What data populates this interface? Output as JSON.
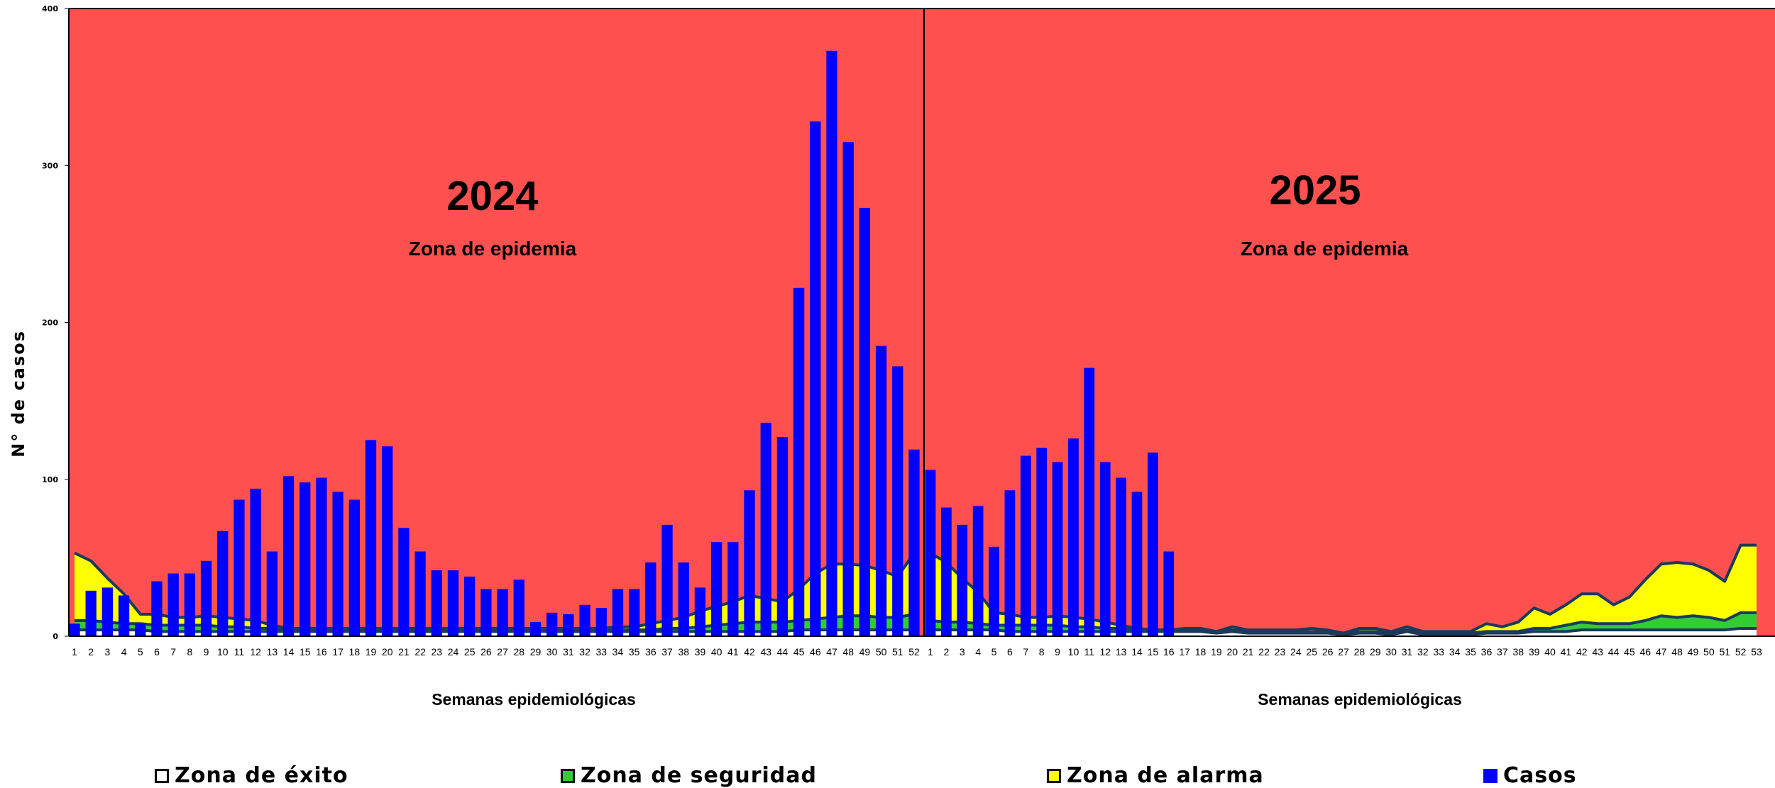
{
  "chart_data": {
    "type": "bar",
    "ylabel": "N° de casos",
    "ylim": [
      0,
      400
    ],
    "yticks": [
      "0",
      "100",
      "200",
      "300",
      "400"
    ],
    "colors": {
      "epidemia": "#ff5050",
      "alarma": "#ffff00",
      "seguridad": "#33cc33",
      "exito": "#ffffff",
      "casos": "#0000ff",
      "lines": "#1a3a5c"
    },
    "panels": [
      {
        "year": "2024",
        "zone_label": "Zona de epidemia",
        "xlabel": "Semanas epidemiológicas",
        "weeks": [
          "1",
          "2",
          "3",
          "4",
          "5",
          "6",
          "7",
          "8",
          "9",
          "10",
          "11",
          "12",
          "13",
          "14",
          "15",
          "16",
          "17",
          "18",
          "19",
          "20",
          "21",
          "22",
          "23",
          "24",
          "25",
          "26",
          "27",
          "28",
          "29",
          "30",
          "31",
          "32",
          "33",
          "34",
          "35",
          "36",
          "37",
          "38",
          "39",
          "40",
          "41",
          "42",
          "43",
          "44",
          "45",
          "46",
          "47",
          "48",
          "49",
          "50",
          "51",
          "52"
        ],
        "casos": [
          8,
          29,
          31,
          26,
          8,
          35,
          40,
          40,
          48,
          67,
          87,
          94,
          54,
          102,
          98,
          101,
          92,
          87,
          125,
          121,
          69,
          54,
          42,
          42,
          38,
          30,
          30,
          36,
          9,
          15,
          14,
          20,
          18,
          30,
          30,
          47,
          71,
          47,
          31,
          60,
          60,
          93,
          136,
          127,
          222,
          328,
          373,
          315,
          273,
          185,
          172,
          119
        ],
        "alarma": [
          53,
          48,
          37,
          27,
          14,
          14,
          12,
          12,
          13,
          12,
          11,
          10,
          7,
          5,
          5,
          5,
          5,
          5,
          5,
          5,
          5,
          5,
          5,
          5,
          5,
          5,
          5,
          5,
          5,
          5,
          5,
          5,
          5,
          6,
          6,
          8,
          10,
          12,
          16,
          19,
          22,
          26,
          24,
          22,
          30,
          40,
          46,
          46,
          45,
          42,
          38,
          53
        ],
        "seguridad": [
          10,
          10,
          9,
          8,
          8,
          7,
          7,
          7,
          7,
          6,
          6,
          5,
          5,
          4,
          4,
          4,
          4,
          4,
          4,
          4,
          4,
          4,
          4,
          4,
          4,
          4,
          4,
          4,
          4,
          4,
          4,
          4,
          4,
          4,
          4,
          4,
          5,
          5,
          6,
          7,
          8,
          9,
          9,
          9,
          10,
          11,
          12,
          13,
          13,
          12,
          12,
          14
        ],
        "exito": [
          4,
          4,
          4,
          4,
          4,
          3,
          3,
          3,
          3,
          3,
          3,
          3,
          3,
          3,
          3,
          3,
          3,
          3,
          3,
          3,
          3,
          3,
          3,
          3,
          3,
          3,
          3,
          3,
          3,
          3,
          3,
          3,
          3,
          3,
          3,
          3,
          3,
          3,
          3,
          3,
          3,
          3,
          3,
          3,
          4,
          4,
          4,
          4,
          4,
          4,
          4,
          4
        ]
      },
      {
        "year": "2025",
        "zone_label": "Zona de epidemia",
        "xlabel": "Semanas epidemiológicas",
        "weeks": [
          "1",
          "2",
          "3",
          "4",
          "5",
          "6",
          "7",
          "8",
          "9",
          "10",
          "11",
          "12",
          "13",
          "14",
          "15",
          "16",
          "17",
          "18",
          "19",
          "20",
          "21",
          "22",
          "23",
          "24",
          "25",
          "26",
          "27",
          "28",
          "29",
          "30",
          "31",
          "32",
          "33",
          "34",
          "35",
          "36",
          "37",
          "38",
          "39",
          "40",
          "41",
          "42",
          "43",
          "44",
          "45",
          "46",
          "47",
          "48",
          "49",
          "50",
          "51",
          "52",
          "53"
        ],
        "casos": [
          106,
          82,
          71,
          83,
          57,
          93,
          115,
          120,
          111,
          126,
          171,
          111,
          101,
          92,
          117,
          54
        ],
        "alarma": [
          53,
          47,
          37,
          28,
          15,
          14,
          12,
          12,
          13,
          12,
          11,
          9,
          7,
          5,
          4,
          4,
          5,
          5,
          3,
          6,
          4,
          4,
          4,
          4,
          5,
          4,
          2,
          5,
          5,
          3,
          6,
          3,
          3,
          3,
          3,
          8,
          6,
          9,
          18,
          14,
          20,
          27,
          27,
          20,
          25,
          36,
          46,
          47,
          46,
          42,
          35,
          58,
          58
        ],
        "seguridad": [
          10,
          9,
          9,
          8,
          7,
          7,
          7,
          7,
          7,
          6,
          6,
          5,
          5,
          4,
          4,
          4,
          4,
          4,
          3,
          4,
          3,
          3,
          3,
          3,
          3,
          3,
          2,
          3,
          3,
          2,
          4,
          2,
          2,
          2,
          2,
          3,
          3,
          3,
          5,
          5,
          7,
          9,
          8,
          8,
          8,
          10,
          13,
          12,
          13,
          12,
          10,
          15,
          15
        ],
        "exito": [
          4,
          4,
          4,
          4,
          4,
          3,
          3,
          3,
          3,
          3,
          3,
          3,
          3,
          3,
          3,
          3,
          3,
          3,
          2,
          3,
          2,
          2,
          2,
          2,
          2,
          2,
          1,
          2,
          2,
          1,
          3,
          1,
          1,
          1,
          1,
          2,
          2,
          2,
          3,
          3,
          3,
          4,
          4,
          4,
          4,
          4,
          4,
          4,
          4,
          4,
          4,
          5,
          5
        ]
      }
    ],
    "legend": [
      {
        "label": "Zona de éxito",
        "color": "#ffffff"
      },
      {
        "label": "Zona de seguridad",
        "color": "#33cc33"
      },
      {
        "label": "Zona de alarma",
        "color": "#ffff00"
      },
      {
        "label": "Casos",
        "color": "#0000ff"
      }
    ]
  }
}
